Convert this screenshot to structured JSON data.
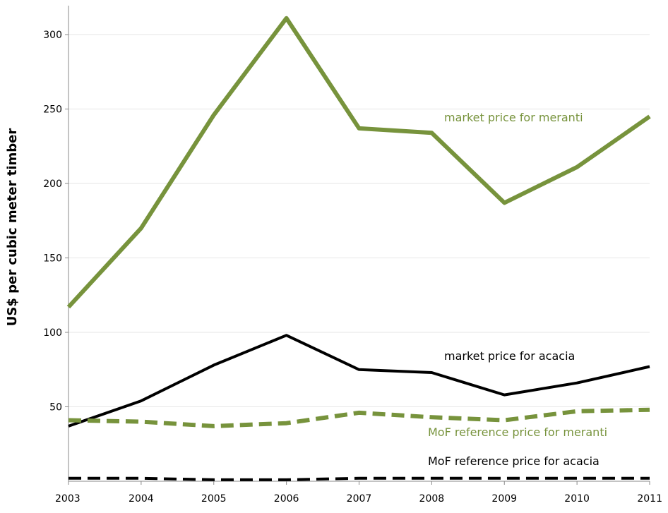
{
  "chart_data": {
    "type": "line",
    "title": "",
    "xlabel": "",
    "ylabel": "US$ per cubic meter timber",
    "x": [
      2003,
      2004,
      2005,
      2006,
      2007,
      2008,
      2009,
      2010,
      2011
    ],
    "x_tick_labels": [
      "2003",
      "2004",
      "2005",
      "2006",
      "2007",
      "2008",
      "2009",
      "2010",
      "2011"
    ],
    "y_tick_labels": [
      "50",
      "100",
      "150",
      "200",
      "250",
      "300"
    ],
    "ylim": [
      0,
      315
    ],
    "grid": true,
    "series": [
      {
        "name": "market price for meranti",
        "values": [
          117,
          170,
          246,
          311,
          237,
          234,
          187,
          211,
          245
        ],
        "color": "#77933c",
        "style": "solid"
      },
      {
        "name": "market price for acacia",
        "values": [
          37,
          54,
          78,
          98,
          75,
          73,
          58,
          66,
          77
        ],
        "color": "#000000",
        "style": "solid"
      },
      {
        "name": "MoF reference price for meranti",
        "values": [
          41,
          40,
          37,
          39,
          46,
          43,
          41,
          47,
          48
        ],
        "color": "#77933c",
        "style": "dashed"
      },
      {
        "name": "MoF reference price for acacia",
        "values": [
          2,
          2,
          1,
          1,
          2,
          2,
          2,
          2,
          2
        ],
        "color": "#000000",
        "style": "dashed"
      }
    ]
  }
}
